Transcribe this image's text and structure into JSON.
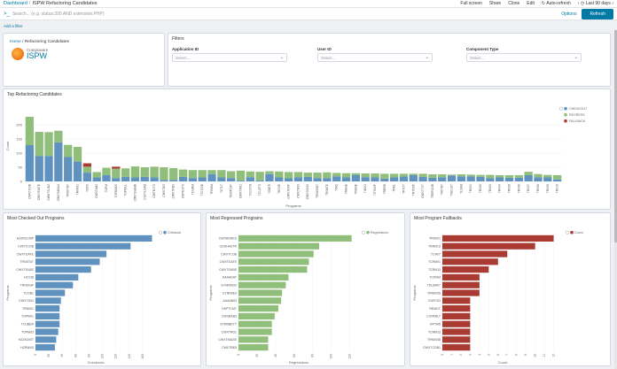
{
  "topbar": {
    "crumb_root": "Dashboard",
    "crumb_sep": "/",
    "crumb_current": "ISPW Refactoring Candidates",
    "nav": [
      "Full screen",
      "Share",
      "Clone",
      "Edit",
      "Auto-refresh"
    ],
    "time": "Last 90 days"
  },
  "query": {
    "prompt": ">_",
    "placeholder": "Search... (e.g. status:200 AND extension:PHP)",
    "options": "Options",
    "refresh": "Refresh"
  },
  "add_filter": "Add a filter",
  "home_panel": {
    "crumb_home": "Home",
    "crumb_sep": "/",
    "crumb_title": "Refactoring Candidates",
    "logo_small": "Compuware",
    "logo_big": "ISPW"
  },
  "filters": {
    "title": "Filters",
    "fields": [
      {
        "label": "Application ID",
        "placeholder": "Select..."
      },
      {
        "label": "User ID",
        "placeholder": "Select..."
      },
      {
        "label": "Component Type",
        "placeholder": "Select..."
      }
    ]
  },
  "colors": {
    "checkout": "#6092c0",
    "regressed": "#8fbf7a",
    "fallback": "#aa3b33"
  },
  "chart_data": [
    {
      "type": "bar",
      "title": "Top Refactoring Candidates",
      "xlabel": "Programs",
      "ylabel": "Count",
      "ylim": [
        0,
        250
      ],
      "yticks": [
        0,
        50,
        100,
        150,
        200
      ],
      "legend": [
        "CHECKOUT",
        "REGRESS",
        "FALLBACK"
      ],
      "legend_position": "top-right",
      "categories": [
        "CWXTCOB",
        "CWXTDATE",
        "CWKTSUBZ",
        "CWXTMDLG",
        "TRNSTAT",
        "TRN001",
        "TCRS",
        "CWXTAD2",
        "TOPM",
        "TOPBAKS",
        "TOPBILL",
        "CWXTGAMB",
        "CSVTLOAD",
        "CWTBJTS",
        "CWXTDO",
        "CWXTRD3",
        "CWTESTS",
        "TCGRM",
        "TSTCOB",
        "TPRGM",
        "TCTLT",
        "TDISPLAY",
        "CWXTM01",
        "TCUSTR",
        "TCUSTS",
        "TDATE",
        "TRSSE",
        "CWXTDSP",
        "CWXTR03",
        "CWXTMSG",
        "TRNCRDT",
        "TRDATE",
        "TINQ",
        "TRAGE",
        "TRGNE",
        "TINVO",
        "TSTDSP",
        "TRERR",
        "TFAIL",
        "TRTOT",
        "TRTDSP",
        "CWXTTST",
        "TREPCOB",
        "TRSTAT",
        "TRCUST",
        "TLOAD",
        "TRX01",
        "TRX02",
        "TRX03",
        "TRX04",
        "TRX05",
        "TRX06",
        "TRX07",
        "TRX08",
        "TRX09",
        "TRX10"
      ],
      "series": [
        {
          "name": "CHECKOUT",
          "values": [
            128,
            90,
            90,
            138,
            86,
            70,
            31,
            14,
            22,
            12,
            16,
            14,
            16,
            14,
            5,
            5,
            16,
            12,
            14,
            26,
            14,
            12,
            3,
            15,
            4,
            26,
            14,
            11,
            15,
            16,
            12,
            12,
            18,
            14,
            23,
            15,
            14,
            10,
            14,
            17,
            22,
            16,
            13,
            15,
            21,
            18,
            18,
            16,
            12,
            14,
            13,
            13,
            22,
            15,
            14,
            7
          ]
        },
        {
          "name": "REGRESS",
          "values": [
            100,
            85,
            84,
            41,
            43,
            52,
            21,
            19,
            26,
            33,
            30,
            39,
            34,
            38,
            45,
            42,
            26,
            28,
            26,
            14,
            26,
            24,
            35,
            20,
            30,
            10,
            21,
            22,
            18,
            15,
            19,
            20,
            12,
            15,
            6,
            13,
            14,
            17,
            13,
            10,
            5,
            11,
            12,
            10,
            3,
            7,
            6,
            7,
            11,
            8,
            9,
            9,
            12,
            11,
            9,
            15
          ]
        },
        {
          "name": "FALLBACK",
          "values": [
            0,
            0,
            0,
            0,
            0,
            0,
            12,
            0,
            0,
            7,
            0,
            0,
            0,
            0,
            0,
            0,
            0,
            0,
            0,
            0,
            0,
            0,
            0,
            0,
            0,
            0,
            0,
            0,
            0,
            0,
            0,
            0,
            0,
            0,
            0,
            0,
            0,
            0,
            0,
            0,
            0,
            0,
            0,
            0,
            0,
            0,
            0,
            0,
            0,
            0,
            0,
            0,
            0,
            0,
            0,
            0
          ]
        }
      ]
    },
    {
      "type": "bar",
      "orientation": "horizontal",
      "title": "Most Checked Out Programs",
      "xlabel": "Checkouts",
      "ylabel": "Programs",
      "legend": [
        "Checkout"
      ],
      "legend_position": "top-right",
      "categories": [
        "HZZRZCMP",
        "CWXTCOB",
        "CWXTDATE",
        "TRNSTAT",
        "CWXTSUBZ",
        "HC238",
        "TRNDISP",
        "TCOB1",
        "CWXTD04",
        "TRN001",
        "TOPM01",
        "TCUBER",
        "TOPM03",
        "HZZKDIST",
        "HZRMAS"
      ],
      "values": [
        174,
        142,
        106,
        96,
        83,
        64,
        56,
        44,
        38,
        36,
        36,
        36,
        34,
        31,
        29
      ],
      "xlim": [
        0,
        180
      ],
      "xticks": [
        0,
        20,
        40,
        60,
        80,
        100,
        120,
        140,
        160
      ]
    },
    {
      "type": "bar",
      "orientation": "horizontal",
      "title": "Most Regressed Programs",
      "xlabel": "Regressions",
      "ylabel": "Programs",
      "legend": [
        "Regressions"
      ],
      "legend_position": "top-right",
      "categories": [
        "CWXADDES",
        "GDSHASTR",
        "CWXTCOB",
        "CWXTDATE",
        "CWXTSUBS",
        "AAAADAT",
        "SYNKMOD",
        "ETRN9E3",
        "AAAAB03",
        "HSPTCMT",
        "CWXBAB3",
        "ETRNBKTT",
        "CWXTRD1",
        "CWXTMAGE",
        "CWXTBE5"
      ],
      "values": [
        122,
        87,
        81,
        76,
        74,
        54,
        51,
        47,
        46,
        43,
        39,
        36,
        36,
        32,
        32
      ],
      "xlim": [
        0,
        130
      ],
      "xticks": [
        0,
        20,
        40,
        60,
        80,
        100,
        120
      ]
    },
    {
      "type": "bar",
      "orientation": "horizontal",
      "title": "Most Program Fallbacks",
      "xlabel": "Count",
      "ylabel": "Programs",
      "legend": [
        "Count"
      ],
      "legend_position": "top-right",
      "categories": [
        "TRN001",
        "TRN001I",
        "TCR07",
        "TCRM01",
        "TCRM13",
        "TCRRM",
        "TDLBR07",
        "TRN0035",
        "CWXT03",
        "REMOT",
        "CCPARLT",
        "RPTM5",
        "TCRM13",
        "TRN0038",
        "CWXTCOB1"
      ],
      "values": [
        12,
        10,
        7,
        6,
        5,
        4,
        4,
        4,
        3,
        3,
        3,
        3,
        3,
        3,
        3
      ],
      "xlim": [
        0,
        13
      ],
      "xticks": [
        0,
        1,
        2,
        3,
        4,
        5,
        6,
        7,
        8,
        9,
        10,
        11,
        12
      ]
    }
  ]
}
